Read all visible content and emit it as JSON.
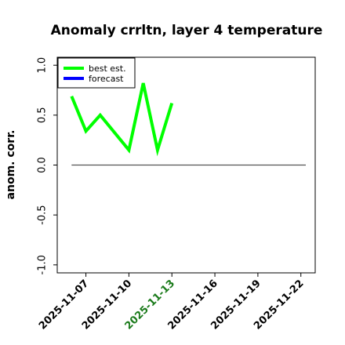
{
  "chart_data": {
    "type": "line",
    "title": "Anomaly crrltn, layer 4 temperature",
    "ylabel": "anom. corr.",
    "xlabel": "",
    "ylim": [
      -1.08,
      1.08
    ],
    "xlim": [
      "2025-11-05",
      "2025-11-23"
    ],
    "yticks": [
      -1.0,
      -0.5,
      0.0,
      0.5,
      1.0
    ],
    "ytick_labels": [
      "-1.0",
      "-0.5",
      "0.0",
      "0.5",
      "1.0"
    ],
    "xticks": [
      "2025-11-07",
      "2025-11-10",
      "2025-11-13",
      "2025-11-16",
      "2025-11-19",
      "2025-11-22"
    ],
    "highlighted_xtick": "2025-11-13",
    "highlight_color": "#1a7a1a",
    "grid": false,
    "legend_position": "top-left",
    "reference_line": {
      "y": 0.0,
      "x_from": "2025-11-06",
      "x_to": "2025-11-23",
      "color": "#555555"
    },
    "series": [
      {
        "name": "best est.",
        "color": "#00ff00",
        "x": [
          "2025-11-06",
          "2025-11-07",
          "2025-11-08",
          "2025-11-10",
          "2025-11-11",
          "2025-11-12",
          "2025-11-13"
        ],
        "y": [
          0.69,
          0.34,
          0.5,
          0.15,
          0.82,
          0.15,
          0.62
        ]
      },
      {
        "name": "forecast",
        "color": "#0000ff",
        "x": [],
        "y": []
      }
    ]
  }
}
